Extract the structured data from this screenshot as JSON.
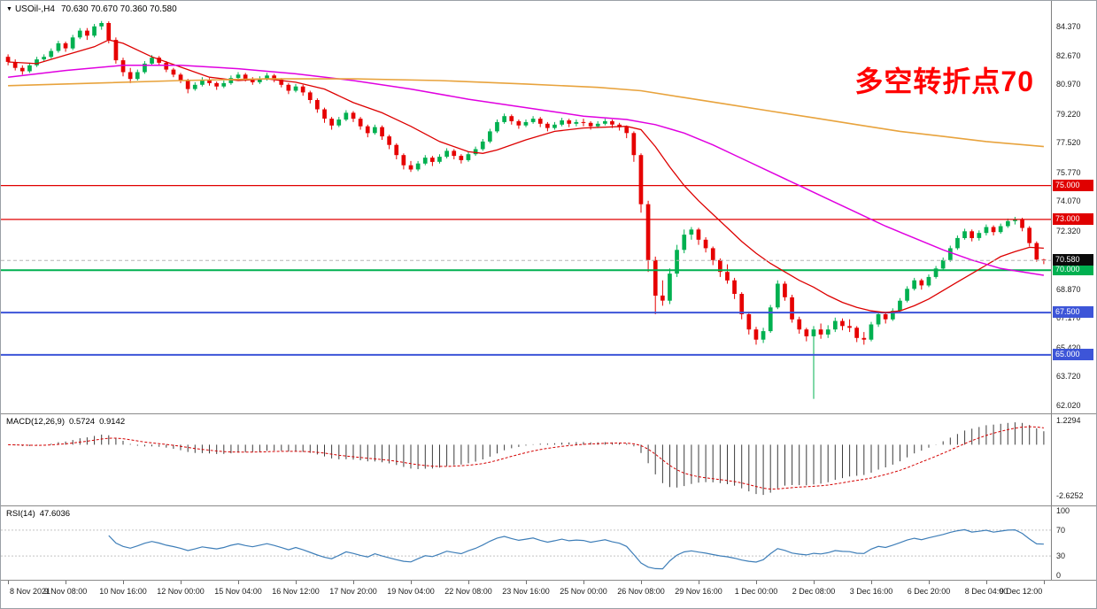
{
  "header": {
    "marker": "▼",
    "title": "USOil-,H4",
    "ohlc_text": "70.630 70.670 70.360 70.580"
  },
  "annotation": {
    "text": "多空转折点70",
    "color": "#FF0000"
  },
  "chart_data": {
    "type": "candlestick",
    "symbol": "USOil-",
    "timeframe": "H4",
    "current_bar": {
      "open": 70.63,
      "high": 70.67,
      "low": 70.36,
      "close": 70.58
    },
    "up_color": "#00B050",
    "down_color": "#E60000",
    "price_axis": {
      "view_max": 85.75,
      "view_min": 61.7,
      "grid_labels": [
        "84.370",
        "82.670",
        "80.970",
        "79.220",
        "77.520",
        "75.770",
        "74.070",
        "72.320",
        "68.870",
        "67.170",
        "65.420",
        "63.720",
        "62.020"
      ]
    },
    "horizontal_lines": [
      {
        "price": 75.0,
        "label": "75.000",
        "color": "#E00000",
        "width": 1.2
      },
      {
        "price": 73.0,
        "label": "73.000",
        "color": "#E00000",
        "width": 1.2
      },
      {
        "price": 70.0,
        "label": "70.000",
        "color": "#00B050",
        "width": 2
      },
      {
        "price": 67.5,
        "label": "67.500",
        "color": "#3D55D8",
        "width": 2
      },
      {
        "price": 65.0,
        "label": "65.000",
        "color": "#3D55D8",
        "width": 2
      }
    ],
    "current_price_tag": {
      "price": 70.58,
      "label": "70.580",
      "bg": "#0a0a0a"
    },
    "ma_lines": [
      {
        "name": "fast",
        "color": "#DD0000",
        "width": 1.3,
        "points": [
          [
            0,
            82.3
          ],
          [
            4,
            82.2
          ],
          [
            8,
            82.7
          ],
          [
            12,
            83.2
          ],
          [
            14,
            83.6
          ],
          [
            16,
            83.4
          ],
          [
            20,
            82.6
          ],
          [
            24,
            82.0
          ],
          [
            28,
            81.4
          ],
          [
            32,
            81.2
          ],
          [
            36,
            81.3
          ],
          [
            40,
            81.1
          ],
          [
            44,
            80.7
          ],
          [
            48,
            79.9
          ],
          [
            52,
            79.3
          ],
          [
            56,
            78.5
          ],
          [
            60,
            77.6
          ],
          [
            64,
            77.0
          ],
          [
            66,
            76.9
          ],
          [
            68,
            77.1
          ],
          [
            72,
            77.7
          ],
          [
            76,
            78.2
          ],
          [
            80,
            78.4
          ],
          [
            86,
            78.5
          ],
          [
            88,
            78.3
          ],
          [
            90,
            77.3
          ],
          [
            92,
            76.1
          ],
          [
            94,
            75.0
          ],
          [
            96,
            74.1
          ],
          [
            98,
            73.3
          ],
          [
            100,
            72.5
          ],
          [
            102,
            71.7
          ],
          [
            104,
            71.0
          ],
          [
            106,
            70.4
          ],
          [
            108,
            69.9
          ],
          [
            110,
            69.4
          ],
          [
            112,
            69.0
          ],
          [
            114,
            68.5
          ],
          [
            116,
            68.1
          ],
          [
            118,
            67.8
          ],
          [
            120,
            67.6
          ],
          [
            122,
            67.5
          ],
          [
            124,
            67.6
          ],
          [
            126,
            67.9
          ],
          [
            128,
            68.3
          ],
          [
            130,
            68.8
          ],
          [
            132,
            69.3
          ],
          [
            134,
            69.8
          ],
          [
            136,
            70.3
          ],
          [
            138,
            70.8
          ],
          [
            140,
            71.1
          ],
          [
            142,
            71.35
          ],
          [
            144,
            71.3
          ]
        ]
      },
      {
        "name": "mid",
        "color": "#E000E0",
        "width": 1.5,
        "points": [
          [
            0,
            81.4
          ],
          [
            8,
            81.8
          ],
          [
            16,
            82.1
          ],
          [
            24,
            82.1
          ],
          [
            32,
            81.9
          ],
          [
            40,
            81.6
          ],
          [
            48,
            81.2
          ],
          [
            56,
            80.7
          ],
          [
            64,
            80.1
          ],
          [
            72,
            79.6
          ],
          [
            80,
            79.1
          ],
          [
            86,
            78.9
          ],
          [
            90,
            78.6
          ],
          [
            94,
            78.1
          ],
          [
            98,
            77.4
          ],
          [
            102,
            76.6
          ],
          [
            106,
            75.8
          ],
          [
            110,
            75.0
          ],
          [
            114,
            74.2
          ],
          [
            118,
            73.4
          ],
          [
            122,
            72.6
          ],
          [
            126,
            71.9
          ],
          [
            130,
            71.2
          ],
          [
            134,
            70.6
          ],
          [
            138,
            70.1
          ],
          [
            144,
            69.7
          ]
        ]
      },
      {
        "name": "slow",
        "color": "#E8A33D",
        "width": 1.6,
        "points": [
          [
            0,
            80.9
          ],
          [
            12,
            81.05
          ],
          [
            24,
            81.2
          ],
          [
            36,
            81.3
          ],
          [
            48,
            81.3
          ],
          [
            60,
            81.2
          ],
          [
            72,
            81.0
          ],
          [
            82,
            80.8
          ],
          [
            88,
            80.6
          ],
          [
            94,
            80.2
          ],
          [
            100,
            79.8
          ],
          [
            106,
            79.4
          ],
          [
            112,
            79.0
          ],
          [
            118,
            78.6
          ],
          [
            124,
            78.2
          ],
          [
            130,
            77.9
          ],
          [
            136,
            77.6
          ],
          [
            144,
            77.3
          ]
        ]
      }
    ],
    "candles": [
      [
        82.6,
        82.75,
        82.1,
        82.3
      ],
      [
        82.3,
        82.45,
        81.8,
        81.95
      ],
      [
        81.95,
        82.1,
        81.55,
        81.75
      ],
      [
        81.75,
        82.25,
        81.65,
        82.1
      ],
      [
        82.1,
        82.6,
        82.0,
        82.45
      ],
      [
        82.45,
        82.75,
        82.3,
        82.6
      ],
      [
        82.6,
        83.1,
        82.5,
        82.95
      ],
      [
        82.95,
        83.55,
        82.85,
        83.4
      ],
      [
        83.4,
        83.5,
        82.9,
        83.1
      ],
      [
        83.1,
        83.9,
        83.0,
        83.75
      ],
      [
        83.75,
        84.3,
        83.65,
        84.15
      ],
      [
        84.15,
        84.3,
        83.6,
        83.85
      ],
      [
        83.85,
        84.55,
        83.75,
        84.4
      ],
      [
        84.4,
        84.72,
        84.2,
        84.6
      ],
      [
        84.6,
        84.7,
        83.4,
        83.6
      ],
      [
        83.6,
        83.75,
        82.2,
        82.4
      ],
      [
        82.4,
        82.55,
        81.45,
        81.7
      ],
      [
        81.7,
        81.95,
        81.05,
        81.3
      ],
      [
        81.3,
        81.85,
        81.2,
        81.7
      ],
      [
        81.7,
        82.35,
        81.6,
        82.2
      ],
      [
        82.2,
        82.7,
        82.1,
        82.55
      ],
      [
        82.55,
        82.65,
        82.1,
        82.25
      ],
      [
        82.25,
        82.35,
        81.7,
        81.85
      ],
      [
        81.85,
        81.95,
        81.4,
        81.55
      ],
      [
        81.55,
        81.65,
        81.05,
        81.2
      ],
      [
        81.2,
        81.3,
        80.45,
        80.7
      ],
      [
        80.7,
        81.1,
        80.6,
        80.95
      ],
      [
        80.95,
        81.4,
        80.85,
        81.25
      ],
      [
        81.25,
        81.35,
        80.9,
        81.05
      ],
      [
        81.05,
        81.15,
        80.65,
        80.85
      ],
      [
        80.85,
        81.2,
        80.75,
        81.05
      ],
      [
        81.05,
        81.5,
        80.95,
        81.35
      ],
      [
        81.35,
        81.7,
        81.25,
        81.55
      ],
      [
        81.55,
        81.65,
        81.15,
        81.3
      ],
      [
        81.3,
        81.4,
        80.95,
        81.1
      ],
      [
        81.1,
        81.45,
        81.0,
        81.3
      ],
      [
        81.3,
        81.65,
        81.2,
        81.5
      ],
      [
        81.5,
        81.6,
        81.1,
        81.25
      ],
      [
        81.25,
        81.35,
        80.8,
        80.95
      ],
      [
        80.95,
        81.05,
        80.4,
        80.6
      ],
      [
        80.6,
        81.0,
        80.5,
        80.85
      ],
      [
        80.85,
        80.95,
        80.3,
        80.5
      ],
      [
        80.5,
        80.6,
        79.85,
        80.05
      ],
      [
        80.05,
        80.15,
        79.3,
        79.5
      ],
      [
        79.5,
        79.6,
        78.7,
        78.95
      ],
      [
        78.95,
        79.05,
        78.3,
        78.55
      ],
      [
        78.55,
        79.05,
        78.45,
        78.9
      ],
      [
        78.9,
        79.45,
        78.8,
        79.3
      ],
      [
        79.3,
        79.4,
        78.75,
        78.95
      ],
      [
        78.95,
        79.05,
        78.3,
        78.5
      ],
      [
        78.5,
        78.6,
        77.85,
        78.1
      ],
      [
        78.1,
        78.6,
        78.0,
        78.45
      ],
      [
        78.45,
        78.55,
        77.7,
        77.9
      ],
      [
        77.9,
        78.0,
        77.15,
        77.4
      ],
      [
        77.4,
        77.5,
        76.55,
        76.8
      ],
      [
        76.8,
        76.9,
        75.95,
        76.2
      ],
      [
        76.2,
        76.45,
        75.8,
        75.95
      ],
      [
        75.95,
        76.45,
        75.85,
        76.3
      ],
      [
        76.3,
        76.8,
        76.2,
        76.65
      ],
      [
        76.65,
        76.75,
        76.15,
        76.4
      ],
      [
        76.4,
        76.85,
        76.3,
        76.7
      ],
      [
        76.7,
        77.2,
        76.6,
        77.05
      ],
      [
        77.05,
        77.15,
        76.55,
        76.75
      ],
      [
        76.75,
        76.85,
        76.3,
        76.5
      ],
      [
        76.5,
        77.0,
        76.4,
        76.85
      ],
      [
        76.85,
        77.3,
        76.75,
        77.15
      ],
      [
        77.15,
        77.75,
        77.05,
        77.6
      ],
      [
        77.6,
        78.35,
        77.5,
        78.2
      ],
      [
        78.2,
        78.9,
        78.1,
        78.75
      ],
      [
        78.75,
        79.25,
        78.65,
        79.1
      ],
      [
        79.1,
        79.2,
        78.6,
        78.8
      ],
      [
        78.8,
        78.9,
        78.35,
        78.55
      ],
      [
        78.55,
        78.9,
        78.45,
        78.75
      ],
      [
        78.75,
        79.1,
        78.65,
        78.95
      ],
      [
        78.95,
        79.05,
        78.45,
        78.65
      ],
      [
        78.65,
        78.75,
        78.2,
        78.4
      ],
      [
        78.4,
        78.75,
        78.3,
        78.6
      ],
      [
        78.6,
        79.0,
        78.5,
        78.85
      ],
      [
        78.85,
        78.95,
        78.45,
        78.65
      ],
      [
        78.65,
        78.9,
        78.5,
        78.75
      ],
      [
        78.75,
        78.95,
        78.5,
        78.7
      ],
      [
        78.7,
        78.8,
        78.3,
        78.5
      ],
      [
        78.5,
        78.8,
        78.4,
        78.65
      ],
      [
        78.65,
        78.95,
        78.55,
        78.8
      ],
      [
        78.8,
        78.9,
        78.4,
        78.6
      ],
      [
        78.6,
        78.7,
        78.25,
        78.45
      ],
      [
        78.45,
        78.55,
        77.8,
        78.1
      ],
      [
        78.1,
        78.2,
        76.4,
        76.8
      ],
      [
        76.8,
        76.9,
        73.4,
        73.9
      ],
      [
        73.9,
        74.1,
        69.9,
        70.6
      ],
      [
        70.6,
        70.8,
        67.4,
        68.5
      ],
      [
        68.5,
        69.4,
        67.9,
        68.2
      ],
      [
        68.2,
        70.1,
        68.0,
        69.8
      ],
      [
        69.8,
        71.5,
        69.6,
        71.2
      ],
      [
        71.2,
        72.4,
        71.0,
        72.1
      ],
      [
        72.1,
        72.55,
        71.8,
        72.4
      ],
      [
        72.4,
        72.5,
        71.5,
        71.8
      ],
      [
        71.8,
        71.95,
        71.05,
        71.3
      ],
      [
        71.3,
        71.4,
        70.3,
        70.6
      ],
      [
        70.6,
        70.7,
        69.6,
        69.9
      ],
      [
        69.9,
        70.35,
        69.2,
        69.4
      ],
      [
        69.4,
        69.55,
        68.3,
        68.6
      ],
      [
        68.6,
        68.7,
        67.1,
        67.4
      ],
      [
        67.4,
        67.55,
        66.2,
        66.5
      ],
      [
        66.5,
        66.65,
        65.6,
        65.9
      ],
      [
        65.9,
        66.6,
        65.7,
        66.4
      ],
      [
        66.4,
        67.95,
        66.3,
        67.8
      ],
      [
        67.8,
        69.4,
        67.7,
        69.2
      ],
      [
        69.2,
        69.35,
        68.2,
        68.4
      ],
      [
        68.4,
        68.55,
        66.9,
        67.1
      ],
      [
        67.1,
        67.25,
        66.25,
        66.5
      ],
      [
        66.5,
        66.6,
        65.8,
        66.1
      ],
      [
        66.1,
        66.7,
        62.4,
        66.5
      ],
      [
        66.5,
        66.85,
        65.95,
        66.2
      ],
      [
        66.2,
        66.75,
        66.0,
        66.5
      ],
      [
        66.5,
        67.2,
        66.35,
        67.0
      ],
      [
        67.0,
        67.15,
        66.45,
        66.7
      ],
      [
        66.7,
        67.1,
        66.35,
        66.6
      ],
      [
        66.6,
        66.7,
        65.75,
        66.0
      ],
      [
        66.0,
        66.35,
        65.6,
        65.9
      ],
      [
        65.9,
        66.95,
        65.8,
        66.8
      ],
      [
        66.8,
        67.55,
        66.65,
        67.4
      ],
      [
        67.4,
        67.5,
        66.85,
        67.1
      ],
      [
        67.1,
        67.75,
        67.0,
        67.6
      ],
      [
        67.6,
        68.35,
        67.5,
        68.2
      ],
      [
        68.2,
        69.05,
        68.1,
        68.9
      ],
      [
        68.9,
        69.55,
        68.8,
        69.4
      ],
      [
        69.4,
        69.5,
        68.85,
        69.1
      ],
      [
        69.1,
        69.75,
        69.0,
        69.6
      ],
      [
        69.6,
        70.25,
        69.5,
        70.1
      ],
      [
        70.1,
        70.75,
        70.0,
        70.6
      ],
      [
        70.6,
        71.45,
        70.5,
        71.3
      ],
      [
        71.3,
        72.05,
        71.2,
        71.9
      ],
      [
        71.9,
        72.45,
        71.8,
        72.3
      ],
      [
        72.3,
        72.4,
        71.7,
        71.9
      ],
      [
        71.9,
        72.35,
        71.75,
        72.2
      ],
      [
        72.2,
        72.7,
        72.05,
        72.55
      ],
      [
        72.55,
        72.65,
        72.05,
        72.25
      ],
      [
        72.25,
        72.75,
        72.15,
        72.6
      ],
      [
        72.6,
        73.05,
        72.5,
        72.9
      ],
      [
        72.9,
        73.15,
        72.7,
        73.0
      ],
      [
        73.0,
        73.1,
        72.3,
        72.5
      ],
      [
        72.5,
        72.6,
        71.4,
        71.6
      ],
      [
        71.6,
        71.7,
        70.5,
        70.63
      ],
      [
        70.63,
        70.67,
        70.36,
        70.58
      ]
    ],
    "time_labels": [
      {
        "i": 0,
        "t": "8 Nov 2021"
      },
      {
        "i": 8,
        "t": "9 Nov 08:00"
      },
      {
        "i": 16,
        "t": "10 Nov 16:00"
      },
      {
        "i": 24,
        "t": "12 Nov 00:00"
      },
      {
        "i": 32,
        "t": "15 Nov 04:00"
      },
      {
        "i": 40,
        "t": "16 Nov 12:00"
      },
      {
        "i": 48,
        "t": "17 Nov 20:00"
      },
      {
        "i": 56,
        "t": "19 Nov 04:00"
      },
      {
        "i": 64,
        "t": "22 Nov 08:00"
      },
      {
        "i": 72,
        "t": "23 Nov 16:00"
      },
      {
        "i": 80,
        "t": "25 Nov 00:00"
      },
      {
        "i": 88,
        "t": "26 Nov 08:00"
      },
      {
        "i": 96,
        "t": "29 Nov 16:00"
      },
      {
        "i": 104,
        "t": "1 Dec 00:00"
      },
      {
        "i": 112,
        "t": "2 Dec 08:00"
      },
      {
        "i": 120,
        "t": "3 Dec 16:00"
      },
      {
        "i": 128,
        "t": "6 Dec 20:00"
      },
      {
        "i": 136,
        "t": "8 Dec 04:00"
      },
      {
        "i": 144,
        "t": "9 Dec 12:00"
      }
    ],
    "macd": {
      "label": "MACD(12,26,9)",
      "value_main": "0.5724",
      "value_signal": "0.9142",
      "fast": 12,
      "slow": 26,
      "signal": 9,
      "axis_labels": [
        "1.2294",
        "-2.6252"
      ],
      "hist_color": "#3C3C3C",
      "signal_color": "#D40000"
    },
    "rsi": {
      "label": "RSI(14)",
      "value": "47.6036",
      "period": 14,
      "axis_labels": [
        "100",
        "70",
        "30",
        "0"
      ],
      "levels": [
        70,
        30
      ],
      "line_color": "#3E7EB8"
    }
  }
}
